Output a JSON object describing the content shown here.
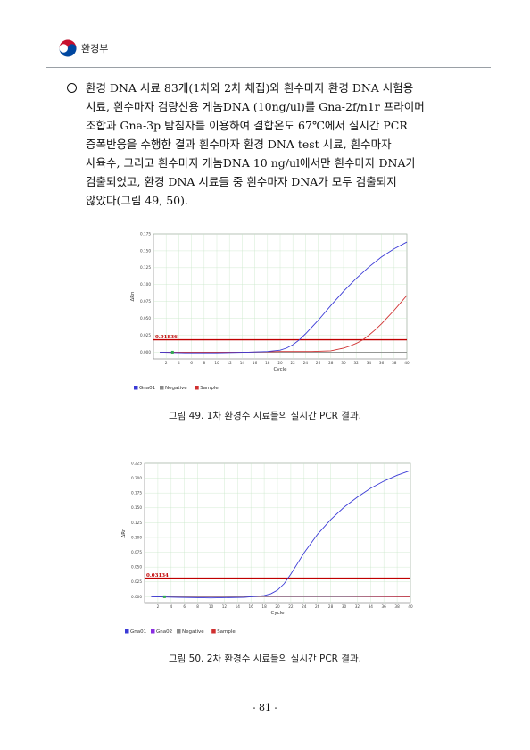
{
  "header": {
    "ministry": "환경부"
  },
  "body_text": {
    "lines": [
      "환경 DNA 시료 83개(1차와 2차 채집)와 흰수마자 환경 DNA 시험용",
      "시료, 흰수마자 검량선용 게놈DNA (10ng/ul)를 Gna-2f/n1r 프라이머",
      "조합과 Gna-3p 탐침자를 이용하여 결합온도 67℃에서 실시간 PCR",
      "증폭반응을 수행한 결과 흰수마자 환경 DNA test 시료, 흰수마자",
      "사육수, 그리고 흰수마자 게놈DNA 10 ng/ul에서만 흰수마자 DNA가",
      "검출되었고, 환경 DNA 시료들 중 흰수마자 DNA가 모두 검출되지",
      "않았다(그림 49, 50)."
    ]
  },
  "chart_data": [
    {
      "type": "line",
      "xlabel": "Cycle",
      "ylabel": "ΔRn",
      "xlim": [
        0,
        40
      ],
      "ylim": [
        -0.01,
        0.175
      ],
      "xticks": [
        2,
        4,
        6,
        8,
        10,
        12,
        14,
        16,
        18,
        20,
        22,
        24,
        26,
        28,
        30,
        32,
        34,
        36,
        38,
        40
      ],
      "yticks": [
        0.0,
        0.025,
        0.05,
        0.075,
        0.1,
        0.125,
        0.15,
        0.175
      ],
      "ytick_labels": [
        "0.000",
        "0.025",
        "0.050",
        "0.075",
        "0.100",
        "0.125",
        "0.150",
        "0.175"
      ],
      "threshold": 0.01836,
      "threshold_label": "0.01836",
      "grid": true,
      "series": [
        {
          "name": "Gna01",
          "color": "#3a3ad6",
          "x": [
            1,
            5,
            10,
            15,
            18,
            20,
            21,
            22,
            23,
            24,
            26,
            28,
            30,
            32,
            34,
            36,
            38,
            40
          ],
          "y": [
            0.0,
            -0.001,
            -0.001,
            0.0,
            0.001,
            0.003,
            0.006,
            0.011,
            0.018,
            0.027,
            0.047,
            0.069,
            0.09,
            0.109,
            0.126,
            0.141,
            0.153,
            0.163
          ]
        },
        {
          "name": "Sample",
          "color": "#d03030",
          "x": [
            1,
            5,
            10,
            15,
            20,
            25,
            28,
            29,
            30,
            31,
            32,
            33,
            34,
            35,
            36,
            37,
            38,
            39,
            40
          ],
          "y": [
            0.0,
            0.0,
            0.0,
            0.0,
            0.001,
            0.001,
            0.002,
            0.004,
            0.006,
            0.009,
            0.013,
            0.018,
            0.025,
            0.033,
            0.042,
            0.052,
            0.062,
            0.073,
            0.084
          ]
        },
        {
          "name": "Negative",
          "color": "#8a8a8a",
          "x": [
            1,
            10,
            20,
            30,
            40
          ],
          "y": [
            0.0,
            0.0,
            0.0,
            0.0,
            0.0
          ]
        }
      ],
      "legend": [
        "Gna01",
        "Negative",
        "Sample"
      ],
      "legend_position": "bottom-left"
    },
    {
      "type": "line",
      "xlabel": "Cycle",
      "ylabel": "ΔRn",
      "xlim": [
        0,
        40
      ],
      "ylim": [
        -0.01,
        0.225
      ],
      "xticks": [
        2,
        4,
        6,
        8,
        10,
        12,
        14,
        16,
        18,
        20,
        22,
        24,
        26,
        28,
        30,
        32,
        34,
        36,
        38,
        40
      ],
      "yticks": [
        0.0,
        0.025,
        0.05,
        0.075,
        0.1,
        0.125,
        0.15,
        0.175,
        0.2,
        0.225
      ],
      "ytick_labels": [
        "0.000",
        "0.025",
        "0.050",
        "0.075",
        "0.100",
        "0.125",
        "0.150",
        "0.175",
        "0.200",
        "0.225"
      ],
      "threshold": 0.03134,
      "threshold_label": "0.03134",
      "grid": true,
      "series": [
        {
          "name": "Gna01",
          "color": "#3a3ad6",
          "x": [
            1,
            5,
            10,
            15,
            18,
            19,
            20,
            21,
            22,
            23,
            24,
            26,
            28,
            30,
            32,
            34,
            36,
            38,
            40
          ],
          "y": [
            0.0,
            -0.001,
            -0.002,
            -0.001,
            0.002,
            0.005,
            0.011,
            0.022,
            0.038,
            0.056,
            0.074,
            0.105,
            0.13,
            0.151,
            0.168,
            0.183,
            0.195,
            0.205,
            0.213
          ]
        },
        {
          "name": "Gna02",
          "color": "#8a2be2",
          "x": [
            1,
            10,
            20,
            30,
            40
          ],
          "y": [
            0.0,
            0.0,
            0.0,
            0.0,
            0.0
          ]
        },
        {
          "name": "Negative",
          "color": "#8a8a8a",
          "x": [
            1,
            10,
            20,
            30,
            40
          ],
          "y": [
            0.0,
            0.0,
            0.0,
            0.0,
            0.0
          ]
        },
        {
          "name": "Sample",
          "color": "#d03030",
          "x": [
            1,
            10,
            20,
            30,
            40
          ],
          "y": [
            0.001,
            0.001,
            0.001,
            0.001,
            0.0
          ]
        }
      ],
      "legend": [
        "Gna01",
        "Gna02",
        "Negative",
        "Sample"
      ],
      "legend_position": "bottom-left"
    }
  ],
  "captions": [
    "그림 49. 1차 환경수 시료들의 실시간 PCR 결과.",
    "그림 50. 2차 환경수 시료들의 실시간 PCR 결과."
  ],
  "footer": {
    "page": "- 81 -"
  },
  "colors": {
    "threshold": "#c00000",
    "grid": "#c8e6c8",
    "plot_bg": "#ffffff"
  }
}
